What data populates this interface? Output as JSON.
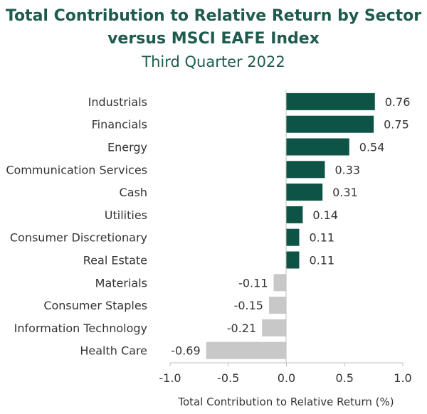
{
  "title_line1": "Total Contribution to Relative Return by Sector",
  "title_line2": "versus MSCI EAFE Index",
  "subtitle": "Third Quarter 2022",
  "chart_data": {
    "type": "bar",
    "orientation": "horizontal",
    "categories": [
      "Industrials",
      "Financials",
      "Energy",
      "Communication Services",
      "Cash",
      "Utilities",
      "Consumer Discretionary",
      "Real Estate",
      "Materials",
      "Consumer Staples",
      "Information Technology",
      "Health Care"
    ],
    "values": [
      0.76,
      0.75,
      0.54,
      0.33,
      0.31,
      0.14,
      0.11,
      0.11,
      -0.11,
      -0.15,
      -0.21,
      -0.69
    ],
    "value_labels": [
      "0.76",
      "0.75",
      "0.54",
      "0.33",
      "0.31",
      "0.14",
      "0.11",
      "0.11",
      "-0.11",
      "-0.15",
      "-0.21",
      "-0.69"
    ],
    "xlabel": "Total Contribution to Relative Return (%)",
    "xlim": [
      -1.0,
      1.0
    ],
    "xticks": [
      -1.0,
      -0.5,
      0.0,
      0.5,
      1.0
    ],
    "xtick_labels": [
      "-1.0",
      "-0.5",
      "0.0",
      "0.5",
      "1.0"
    ],
    "grid": false,
    "legend": "none",
    "colors": {
      "positive": "#0d5446",
      "negative": "#c8c8c8"
    }
  }
}
